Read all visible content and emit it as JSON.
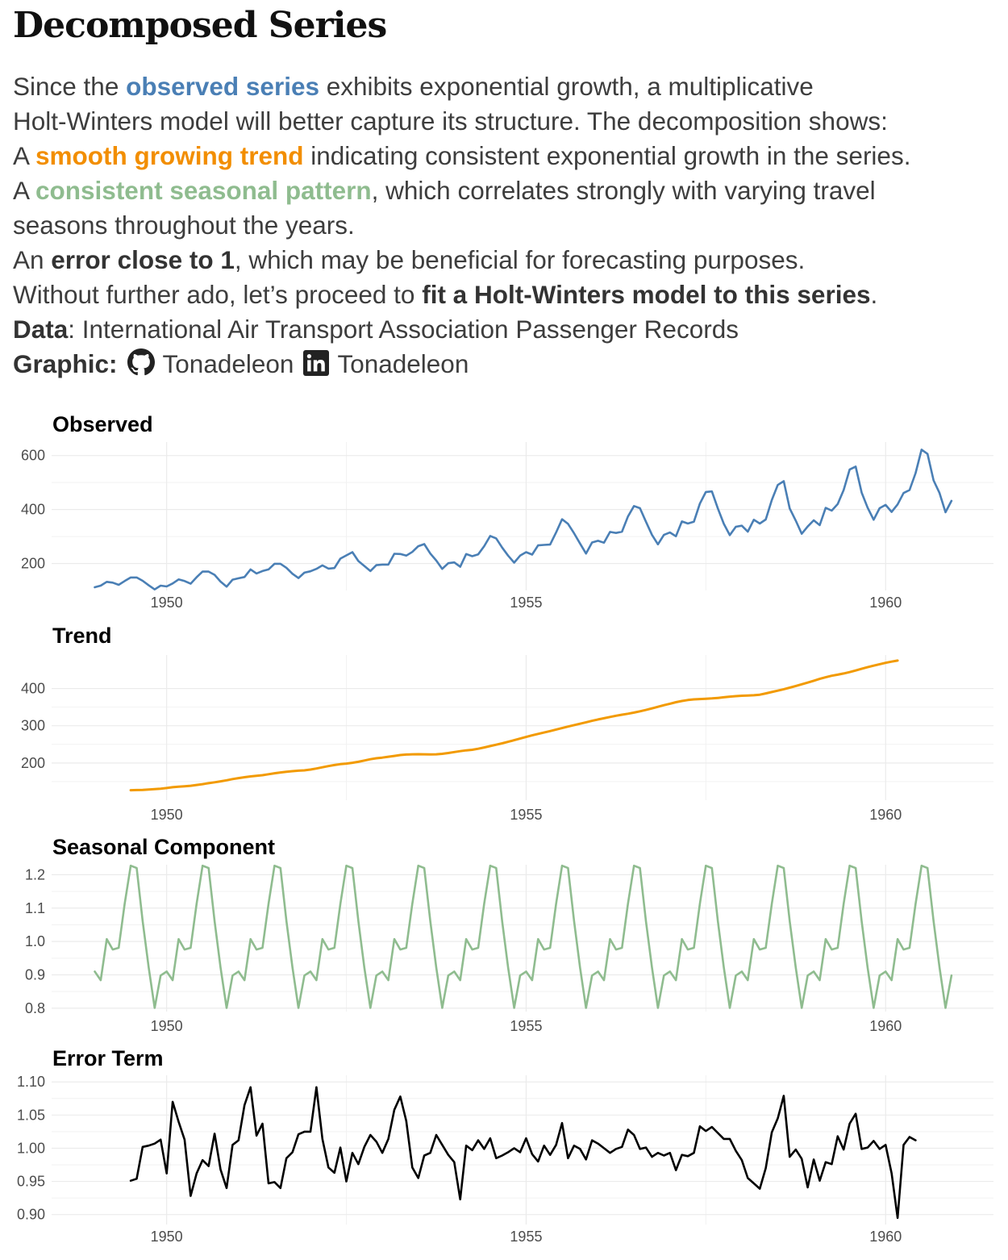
{
  "header": {
    "title": "Decomposed Series",
    "p1_a": "Since the ",
    "p1_b": "observed series",
    "p1_c": " exhibits exponential growth, a multiplicative",
    "p2": "Holt-Winters model will better capture its structure.  The decomposition shows:",
    "p3_a": "A ",
    "p3_b": "smooth growing trend",
    "p3_c": " indicating consistent exponential growth in the series.",
    "p4_a": "A ",
    "p4_b": "consistent seasonal pattern",
    "p4_c": ", which correlates strongly with varying travel",
    "p5": "seasons throughout the years.",
    "p6_a": "An ",
    "p6_b": "error close to 1",
    "p6_c": ", which may be beneficial for forecasting purposes.",
    "p7_a": "Without further ado, let’s proceed to ",
    "p7_b": "fit a Holt-Winters model to this series",
    "p7_c": ".",
    "data_label": "Data",
    "data_text": ": International Air Transport Association Passenger Records",
    "graphic_label": "Graphic:",
    "github_handle": "Tonadeleon",
    "linkedin_handle": "Tonadeleon",
    "icons": [
      "github-icon",
      "linkedin-icon"
    ]
  },
  "colors": {
    "observed": "#4a7fb5",
    "trend": "#f29a00",
    "seasonal": "#8fbc8f",
    "error": "#000000",
    "grid": "#ebebeb"
  },
  "chart_data": [
    {
      "type": "line",
      "title": "Observed",
      "x_start": 1949.0,
      "x_step": 0.08333,
      "xticks": [
        1950,
        1955,
        1960
      ],
      "xlim": [
        1948.4,
        1961.5
      ],
      "ylim": [
        100,
        650
      ],
      "yticks": [
        200,
        400,
        600
      ],
      "values": [
        112,
        118,
        132,
        129,
        121,
        135,
        148,
        148,
        136,
        119,
        104,
        118,
        115,
        126,
        141,
        135,
        125,
        149,
        170,
        170,
        158,
        133,
        114,
        140,
        145,
        150,
        178,
        163,
        172,
        178,
        199,
        199,
        184,
        162,
        146,
        166,
        171,
        180,
        193,
        181,
        183,
        218,
        230,
        242,
        209,
        191,
        172,
        194,
        196,
        196,
        236,
        235,
        229,
        243,
        264,
        272,
        237,
        211,
        180,
        201,
        204,
        188,
        235,
        227,
        234,
        264,
        302,
        293,
        259,
        229,
        203,
        229,
        242,
        233,
        267,
        269,
        270,
        315,
        364,
        347,
        312,
        274,
        237,
        278,
        284,
        277,
        317,
        313,
        318,
        374,
        413,
        405,
        355,
        306,
        271,
        306,
        315,
        301,
        356,
        348,
        355,
        422,
        465,
        467,
        404,
        347,
        305,
        336,
        340,
        318,
        362,
        348,
        363,
        435,
        491,
        505,
        404,
        359,
        310,
        337,
        360,
        342,
        406,
        396,
        420,
        472,
        548,
        559,
        463,
        407,
        362,
        405,
        417,
        391,
        419,
        461,
        472,
        535,
        622,
        606,
        508,
        461,
        390,
        432
      ]
    },
    {
      "type": "line",
      "title": "Trend",
      "x_start": 1949.5,
      "x_step": 0.08333,
      "xticks": [
        1950,
        1955,
        1960
      ],
      "xlim": [
        1948.4,
        1961.5
      ],
      "ylim": [
        100,
        490
      ],
      "yticks": [
        200,
        300,
        400
      ],
      "values": [
        126.8,
        127.2,
        127.6,
        128.6,
        129.8,
        131.0,
        132.8,
        134.9,
        136.4,
        137.4,
        138.8,
        140.9,
        143.2,
        145.7,
        148.0,
        150.6,
        153.6,
        156.7,
        159.4,
        161.8,
        164.0,
        165.6,
        167.2,
        169.8,
        172.3,
        174.5,
        176.5,
        178.0,
        179.2,
        180.1,
        182.3,
        185.2,
        188.5,
        191.6,
        194.5,
        196.8,
        198.4,
        200.6,
        203.2,
        206.6,
        210.0,
        212.6,
        214.5,
        216.8,
        219.0,
        221.3,
        222.6,
        223.2,
        223.5,
        223.3,
        222.8,
        223.2,
        224.6,
        226.8,
        229.3,
        231.8,
        233.8,
        235.5,
        238.3,
        241.8,
        245.3,
        249.0,
        252.8,
        256.9,
        261.1,
        265.5,
        269.9,
        274.1,
        278.0,
        281.8,
        285.7,
        289.8,
        293.6,
        297.8,
        301.8,
        305.4,
        309.2,
        313.2,
        316.8,
        320.2,
        323.6,
        326.8,
        329.6,
        332.3,
        335.2,
        338.7,
        342.4,
        346.5,
        350.8,
        355.2,
        359.2,
        363.2,
        366.6,
        369.1,
        370.9,
        371.8,
        372.5,
        373.4,
        374.8,
        376.5,
        378.2,
        379.5,
        380.5,
        381.2,
        381.9,
        383.5,
        386.9,
        390.5,
        394.3,
        398.1,
        402.3,
        406.9,
        411.4,
        416.0,
        420.8,
        425.8,
        430.3,
        434.4,
        437.2,
        440.4,
        444.1,
        448.3,
        452.9,
        457.3,
        461.4,
        465.2,
        468.9,
        472.2,
        475.0
      ]
    },
    {
      "type": "line",
      "title": "Seasonal Component",
      "x_start": 1949.0,
      "x_step": 0.08333,
      "xticks": [
        1950,
        1955,
        1960
      ],
      "xlim": [
        1948.4,
        1961.5
      ],
      "ylim": [
        0.79,
        1.23
      ],
      "yticks": [
        0.8,
        0.9,
        1.0,
        1.1,
        1.2
      ],
      "pattern": [
        0.91,
        0.884,
        1.007,
        0.976,
        0.981,
        1.113,
        1.227,
        1.22,
        1.061,
        0.922,
        0.801,
        0.898
      ],
      "years": 12
    },
    {
      "type": "line",
      "title": "Error Term",
      "x_start": 1949.5,
      "x_step": 0.08333,
      "xticks": [
        1950,
        1955,
        1960
      ],
      "xlim": [
        1948.4,
        1961.5
      ],
      "ylim": [
        0.885,
        1.11
      ],
      "yticks": [
        0.9,
        0.95,
        1.0,
        1.05,
        1.1
      ],
      "values": [
        0.951,
        0.954,
        1.002,
        1.004,
        1.007,
        1.013,
        0.962,
        1.07,
        1.04,
        1.013,
        0.928,
        0.962,
        0.982,
        0.973,
        1.022,
        0.968,
        0.94,
        1.005,
        1.012,
        1.065,
        1.092,
        1.019,
        1.037,
        0.947,
        0.949,
        0.94,
        0.985,
        0.994,
        1.021,
        1.025,
        1.025,
        1.092,
        1.014,
        0.971,
        0.963,
        1.001,
        0.95,
        0.993,
        0.976,
        1.002,
        1.02,
        1.01,
        0.993,
        1.014,
        1.058,
        1.078,
        1.041,
        0.971,
        0.955,
        0.989,
        0.993,
        1.02,
        1.005,
        0.99,
        0.979,
        0.923,
        1.004,
        0.997,
        1.012,
        0.999,
        1.015,
        0.985,
        0.989,
        0.994,
        1.0,
        0.994,
        1.015,
        0.991,
        0.98,
        1.004,
        0.99,
        1.005,
        1.038,
        0.985,
        1.004,
        0.999,
        0.983,
        1.012,
        1.007,
        1.0,
        0.993,
        0.999,
        1.002,
        1.028,
        1.02,
        0.999,
        1.001,
        0.987,
        0.993,
        0.989,
        0.993,
        0.967,
        0.99,
        0.988,
        0.993,
        1.033,
        1.026,
        1.032,
        1.023,
        1.014,
        1.014,
        0.996,
        0.982,
        0.955,
        0.947,
        0.939,
        0.97,
        1.024,
        1.045,
        1.079,
        0.987,
        0.998,
        0.984,
        0.941,
        0.983,
        0.951,
        0.979,
        0.976,
        1.018,
        0.998,
        1.037,
        1.052,
        0.999,
        1.001,
        1.011,
        0.999,
        1.005,
        0.962,
        0.895,
        1.005,
        1.017,
        1.012
      ]
    }
  ]
}
